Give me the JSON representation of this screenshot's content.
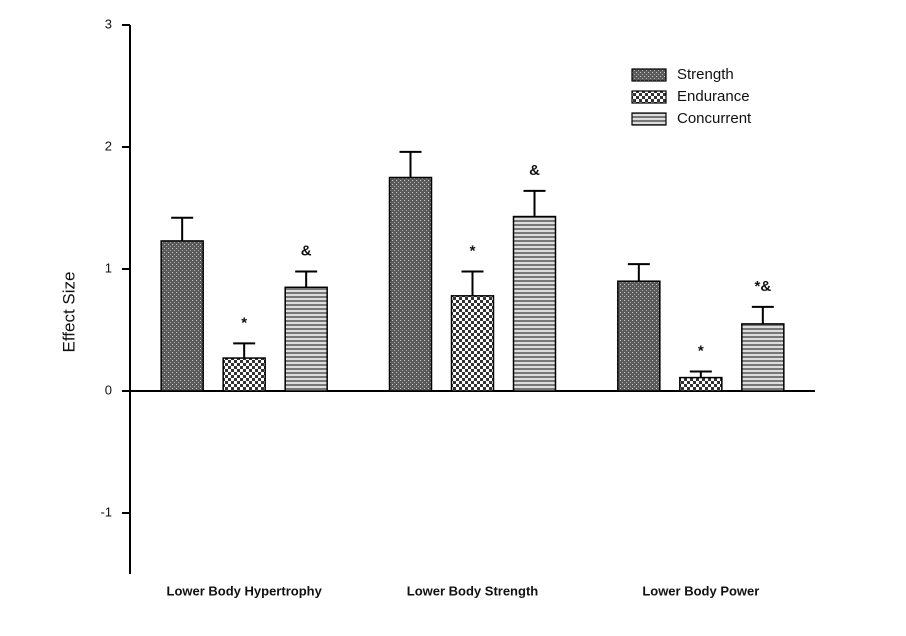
{
  "chart_data": {
    "type": "bar",
    "y_label": "Effect Size",
    "categories": [
      "Lower Body Hypertrophy",
      "Lower Body Strength",
      "Lower Body Power"
    ],
    "series": [
      {
        "name": "Strength",
        "color": "#5a5a5a",
        "pattern": "dots",
        "values": [
          1.23,
          1.75,
          0.9
        ],
        "errors": [
          0.19,
          0.21,
          0.14
        ]
      },
      {
        "name": "Endurance",
        "color": "#333333",
        "pattern": "checker",
        "values": [
          0.27,
          0.78,
          0.11
        ],
        "errors": [
          0.12,
          0.2,
          0.05
        ],
        "annotations": [
          "*",
          "*",
          "*"
        ]
      },
      {
        "name": "Concurrent",
        "color": "#777777",
        "pattern": "stripes",
        "values": [
          0.85,
          1.43,
          0.55
        ],
        "errors": [
          0.13,
          0.21,
          0.14
        ],
        "annotations": [
          "&",
          "&",
          "*&"
        ]
      }
    ],
    "ylim": [
      -1.5,
      3
    ],
    "yticks": [
      -1,
      0,
      1,
      2,
      3
    ],
    "legend": "upper-right"
  }
}
